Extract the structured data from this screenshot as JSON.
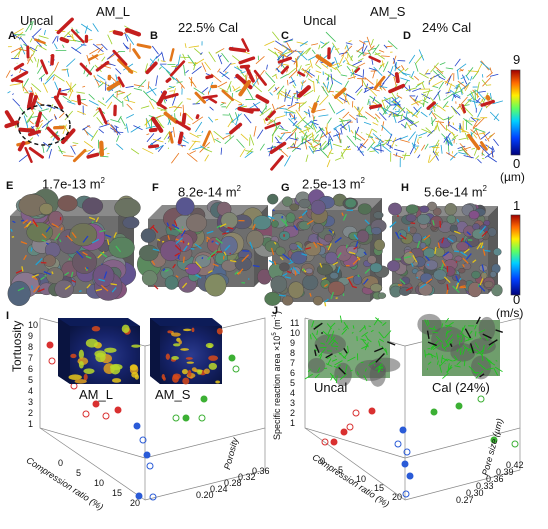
{
  "panel_letters": [
    "A",
    "B",
    "C",
    "D",
    "E",
    "F",
    "G",
    "H",
    "I",
    "J"
  ],
  "top": {
    "group_left": "AM_L",
    "group_right": "AM_S",
    "uncal": "Uncal",
    "cal_22": "22.5% Cal",
    "cal_24": "24% Cal",
    "scale_max": "9",
    "scale_min": "0",
    "scale_unit": "(µm)"
  },
  "mid": {
    "perm_e": "1.7e-13 m",
    "perm_f": "8.2e-14 m",
    "perm_g": "2.5e-13 m",
    "perm_h": "5.6e-14 m",
    "sup": "2",
    "scale_max": "1",
    "scale_min": "0",
    "scale_unit": "(m/s)"
  },
  "plot_i": {
    "ylabel": "Tortuosity",
    "xlabel": "Compression ratio (%)",
    "zlabel": "Porosity",
    "yticks": [
      "10",
      "9",
      "8",
      "7",
      "6",
      "5",
      "4",
      "3",
      "2",
      "1"
    ],
    "xticks": [
      "0",
      "5",
      "10",
      "15",
      "20"
    ],
    "zticks": [
      "0.36",
      "0.32",
      "0.28",
      "0.24",
      "0.20"
    ],
    "label_l": "AM_L",
    "label_s": "AM_S"
  },
  "plot_j": {
    "ylabel": "Specific reaction area ×10",
    "ylabel_sup": "5",
    "ylabel_unit": " (m",
    "ylabel_unit_sup": "-1",
    "ylabel_close": ")",
    "xlabel": "Compression ratio (%)",
    "zlabel": "Pore size (µm)",
    "yticks": [
      "11",
      "10",
      "9",
      "8",
      "7",
      "6",
      "5",
      "4",
      "3",
      "2",
      "1"
    ],
    "xticks": [
      "0",
      "5",
      "10",
      "15",
      "20"
    ],
    "zticks": [
      "0.42",
      "0.39",
      "0.36",
      "0.33",
      "0.30",
      "0.27"
    ],
    "label_uncal": "Uncal",
    "label_cal": "Cal (24%)"
  },
  "colors": {
    "red_vessel": "#c41e1e",
    "green_vessel": "#6cbf2a",
    "blue_vessel": "#2141c9",
    "solid_gray": "#6b6b6b",
    "series_red": "#d93030",
    "series_blue": "#2a5bd7",
    "series_green": "#3cb034"
  }
}
